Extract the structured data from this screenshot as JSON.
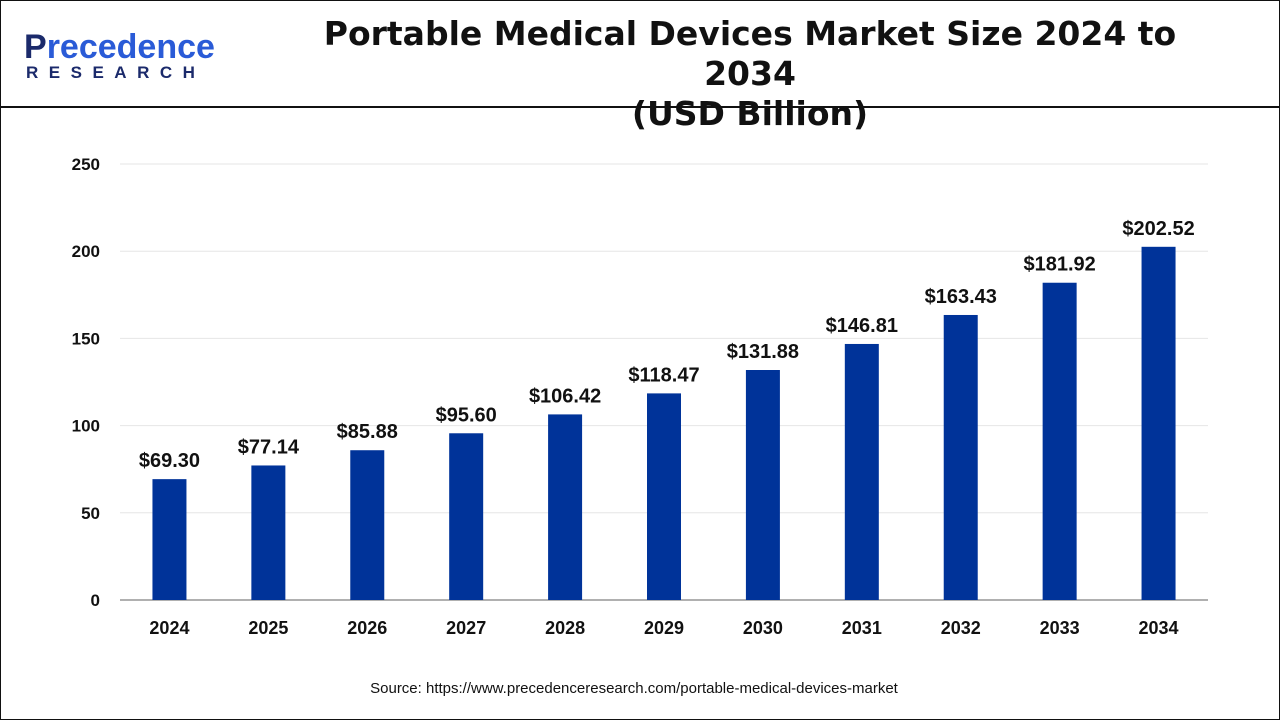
{
  "header": {
    "logo_text": "Precedence",
    "logo_sub": "RESEARCH",
    "title_line1": "Portable Medical Devices Market Size 2024 to 2034",
    "title_line2": "(USD Billion)"
  },
  "source": "Source: https://www.precedenceresearch.com/portable-medical-devices-market",
  "chart_data": {
    "type": "bar",
    "title": "Portable Medical Devices Market Size 2024 to 2034 (USD Billion)",
    "categories": [
      "2024",
      "2025",
      "2026",
      "2027",
      "2028",
      "2029",
      "2030",
      "2031",
      "2032",
      "2033",
      "2034"
    ],
    "values": [
      69.3,
      77.14,
      85.88,
      95.6,
      106.42,
      118.47,
      131.88,
      146.81,
      163.43,
      181.92,
      202.52
    ],
    "data_labels": [
      "$69.30",
      "$77.14",
      "$85.88",
      "$95.60",
      "$106.42",
      "$118.47",
      "$131.88",
      "$146.81",
      "$163.43",
      "$181.92",
      "$202.52"
    ],
    "ylim": [
      0,
      250
    ],
    "yticks": [
      0,
      50,
      100,
      150,
      200,
      250
    ],
    "grid": true,
    "bar_color": "#003399",
    "xlabel": "",
    "ylabel": ""
  }
}
